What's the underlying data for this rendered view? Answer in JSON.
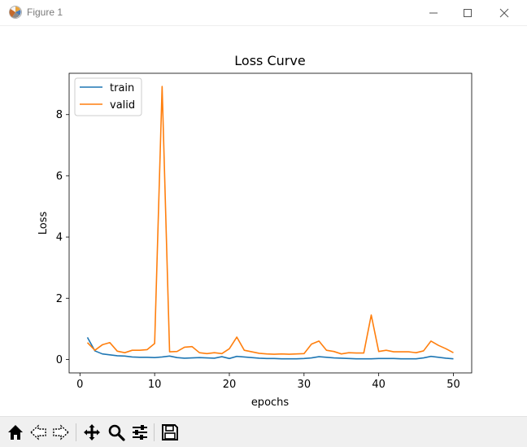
{
  "window": {
    "title": "Figure 1",
    "icon": "matplotlib-figure-icon",
    "controls": [
      "minimize-icon",
      "maximize-icon",
      "close-icon"
    ]
  },
  "toolbar": {
    "buttons": [
      "home-icon",
      "back-arrow-icon",
      "forward-arrow-icon",
      "pan-move-icon",
      "zoom-magnifier-icon",
      "subplot-config-icon",
      "save-floppy-icon"
    ]
  },
  "chart_data": {
    "type": "line",
    "title": "Loss Curve",
    "xlabel": "epochs",
    "ylabel": "Loss",
    "xlim": [
      -1.45,
      52.45
    ],
    "ylim": [
      -0.44,
      9.35
    ],
    "xticks": [
      0,
      10,
      20,
      30,
      40,
      50
    ],
    "yticks": [
      0,
      2,
      4,
      6,
      8
    ],
    "grid": false,
    "legend_position": "upper-left",
    "x": [
      1,
      2,
      3,
      4,
      5,
      6,
      7,
      8,
      9,
      10,
      11,
      12,
      13,
      14,
      15,
      16,
      17,
      18,
      19,
      20,
      21,
      22,
      23,
      24,
      25,
      26,
      27,
      28,
      29,
      30,
      31,
      32,
      33,
      34,
      35,
      36,
      37,
      38,
      39,
      40,
      41,
      42,
      43,
      44,
      45,
      46,
      47,
      48,
      49,
      50
    ],
    "series": [
      {
        "name": "train",
        "color": "#1f77b4",
        "values": [
          0.72,
          0.28,
          0.18,
          0.15,
          0.12,
          0.11,
          0.08,
          0.07,
          0.07,
          0.06,
          0.08,
          0.11,
          0.06,
          0.04,
          0.05,
          0.06,
          0.05,
          0.04,
          0.09,
          0.03,
          0.1,
          0.08,
          0.06,
          0.04,
          0.03,
          0.03,
          0.02,
          0.02,
          0.02,
          0.03,
          0.05,
          0.09,
          0.07,
          0.05,
          0.04,
          0.03,
          0.02,
          0.02,
          0.02,
          0.03,
          0.03,
          0.03,
          0.02,
          0.02,
          0.02,
          0.05,
          0.1,
          0.07,
          0.04,
          0.02
        ]
      },
      {
        "name": "valid",
        "color": "#ff7f0e",
        "values": [
          0.55,
          0.3,
          0.48,
          0.55,
          0.27,
          0.22,
          0.3,
          0.3,
          0.32,
          0.52,
          8.92,
          0.25,
          0.26,
          0.4,
          0.42,
          0.22,
          0.19,
          0.22,
          0.19,
          0.35,
          0.73,
          0.3,
          0.25,
          0.2,
          0.18,
          0.17,
          0.18,
          0.17,
          0.18,
          0.19,
          0.5,
          0.6,
          0.3,
          0.26,
          0.18,
          0.22,
          0.21,
          0.21,
          1.45,
          0.26,
          0.3,
          0.25,
          0.25,
          0.25,
          0.22,
          0.28,
          0.6,
          0.46,
          0.35,
          0.22
        ]
      }
    ]
  }
}
